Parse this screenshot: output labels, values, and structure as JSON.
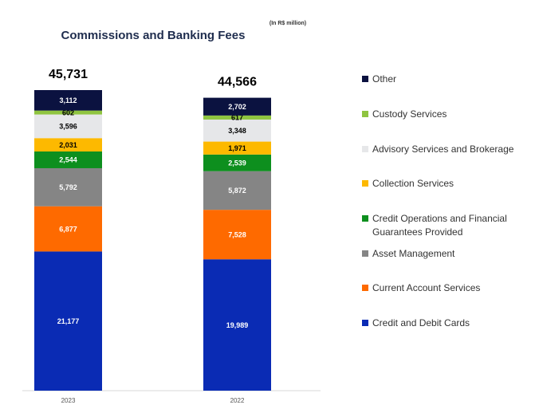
{
  "chart_data": {
    "type": "bar",
    "stacked": true,
    "title": "Commissions and Banking Fees",
    "unit_note": "(In R$ million)",
    "categories": [
      "2023",
      "2022"
    ],
    "totals": [
      "45,731",
      "44,566"
    ],
    "series": [
      {
        "name": "Credit and Debit Cards",
        "color": "#0a2bb4",
        "values": [
          21177,
          19989
        ],
        "labels": [
          "21,177",
          "19,989"
        ],
        "label_color": "#ffffff"
      },
      {
        "name": "Current Account Services",
        "color": "#fe6a00",
        "values": [
          6877,
          7528
        ],
        "labels": [
          "6,877",
          "7,528"
        ],
        "label_color": "#ffffff"
      },
      {
        "name": "Asset Management",
        "color": "#858585",
        "values": [
          5792,
          5872
        ],
        "labels": [
          "5,792",
          "5,872"
        ],
        "label_color": "#ffffff"
      },
      {
        "name": "Credit Operations and Financial Guarantees Provided",
        "legend_lines": [
          "Credit Operations and Financial",
          "Guarantees Provided"
        ],
        "color": "#0d8f1e",
        "values": [
          2544,
          2539
        ],
        "labels": [
          "2,544",
          "2,539"
        ],
        "label_color": "#ffffff"
      },
      {
        "name": "Collection Services",
        "color": "#fdb900",
        "values": [
          2031,
          1971
        ],
        "labels": [
          "2,031",
          "1,971"
        ],
        "label_color": "#000000"
      },
      {
        "name": "Advisory Services and Brokerage",
        "color": "#e6e7e9",
        "values": [
          3596,
          3348
        ],
        "labels": [
          "3,596",
          "3,348"
        ],
        "label_color": "#000000"
      },
      {
        "name": "Custody Services",
        "color": "#8fc440",
        "values": [
          602,
          617
        ],
        "labels": [
          "602",
          "617"
        ],
        "label_color": "#000000"
      },
      {
        "name": "Other",
        "color": "#0b1240",
        "values": [
          3112,
          2702
        ],
        "labels": [
          "3,112",
          "2,702"
        ],
        "label_color": "#ffffff"
      }
    ],
    "legend_order": [
      "Other",
      "Custody Services",
      "Advisory Services and Brokerage",
      "Collection Services",
      "Credit Operations and Financial Guarantees Provided",
      "Asset Management",
      "Current Account Services",
      "Credit and Debit Cards"
    ],
    "legend_position": "right",
    "ylim": [
      0,
      45731
    ]
  }
}
